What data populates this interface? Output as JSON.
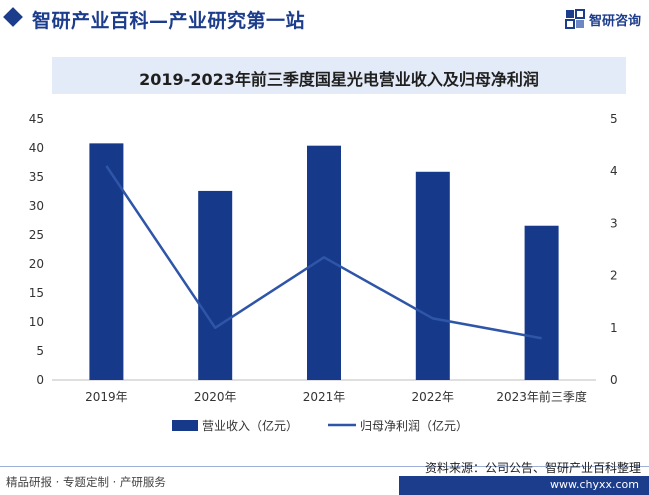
{
  "header": {
    "title": "智研产业百科—产业研究第一站",
    "brand_name": "智研咨询",
    "accent_color": "#1c3c8c"
  },
  "footer": {
    "left_text": "精品研报 · 专题定制 · 产研服务",
    "source_text": "资料来源：公司公告、智研产业百科整理",
    "url_text": "www.chyxx.com"
  },
  "chart_data": {
    "type": "bar",
    "title": "2019-2023年前三季度国星光电营业收入及归母净利润",
    "categories": [
      "2019年",
      "2020年",
      "2021年",
      "2022年",
      "2023年前三季度"
    ],
    "series": [
      {
        "name": "营业收入（亿元）",
        "type": "bar",
        "axis": "left",
        "color": "#17398a",
        "values": [
          40.8,
          32.6,
          40.4,
          35.9,
          26.6
        ]
      },
      {
        "name": "归母净利润（亿元）",
        "type": "line",
        "axis": "right",
        "color": "#2e55a8",
        "values": [
          4.1,
          1.0,
          2.35,
          1.18,
          0.8
        ]
      }
    ],
    "y_left": {
      "min": 0,
      "max": 45,
      "ticks": [
        "0",
        "5",
        "10",
        "15",
        "20",
        "25",
        "30",
        "35",
        "40",
        "45"
      ]
    },
    "y_right": {
      "min": 0,
      "max": 5,
      "ticks": [
        "0",
        "1",
        "2",
        "3",
        "4",
        "5"
      ]
    },
    "grid": false,
    "legend_position": "bottom"
  }
}
